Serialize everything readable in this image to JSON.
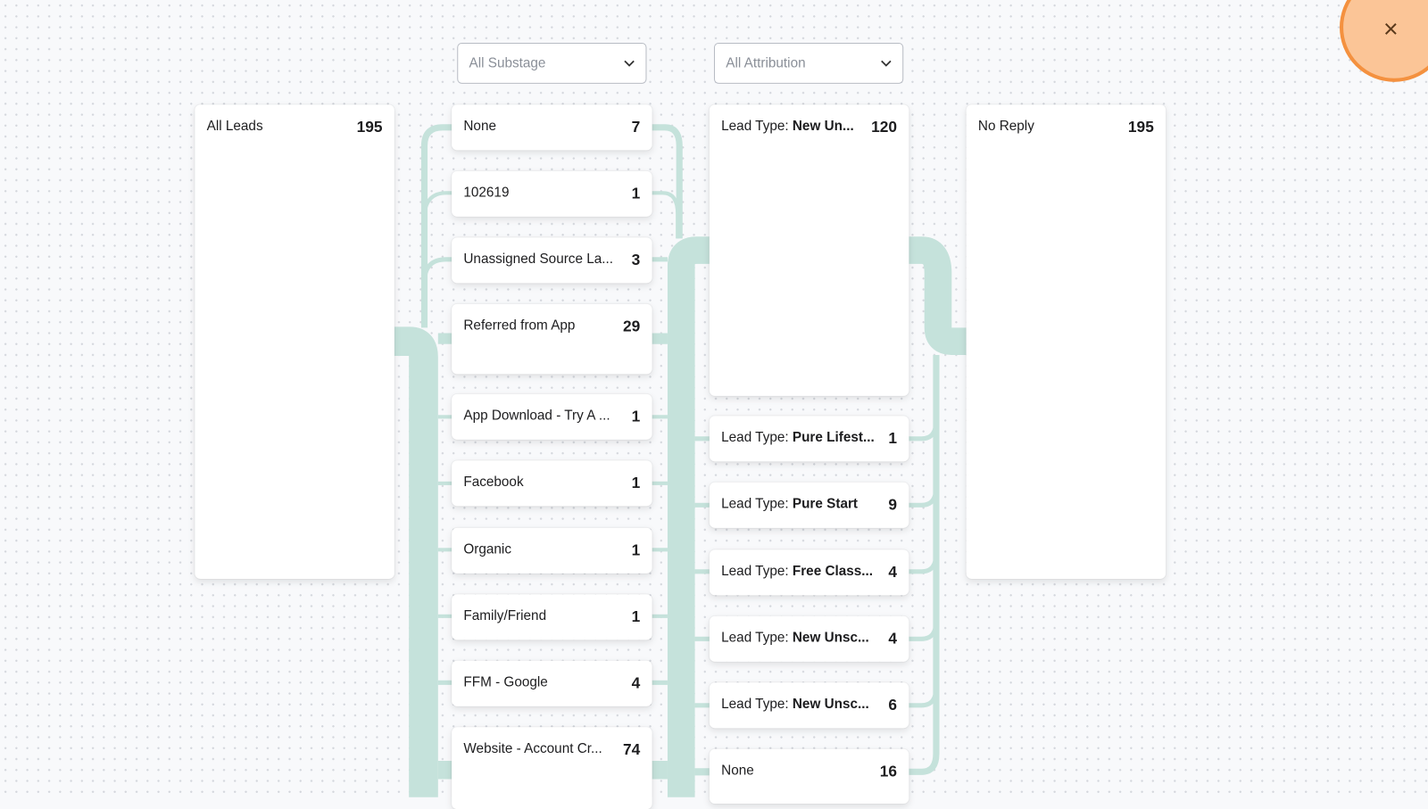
{
  "filters": {
    "substage": "All Substage",
    "attribution": "All Attribution"
  },
  "colors": {
    "link": "#c5e2db",
    "close_fill": "#fbc597",
    "close_border": "#f4913f"
  },
  "close_icon": "×",
  "column1": [
    {
      "label": "All Leads",
      "count": "195"
    }
  ],
  "column2": [
    {
      "label": "None",
      "count": "7"
    },
    {
      "label": "102619",
      "count": "1"
    },
    {
      "label": "Unassigned Source La...",
      "count": "3"
    },
    {
      "label": "Referred from App",
      "count": "29"
    },
    {
      "label": "App Download - Try A ...",
      "count": "1"
    },
    {
      "label": "Facebook",
      "count": "1"
    },
    {
      "label": "Organic",
      "count": "1"
    },
    {
      "label": "Family/Friend",
      "count": "1"
    },
    {
      "label": "FFM - Google",
      "count": "4"
    },
    {
      "label": "Website - Account Cr...",
      "count": "74"
    }
  ],
  "column3": [
    {
      "prefix": "Lead Type: ",
      "value": "New Un...",
      "count": "120"
    },
    {
      "prefix": "Lead Type: ",
      "value": "Pure Lifest...",
      "count": "1"
    },
    {
      "prefix": "Lead Type: ",
      "value": "Pure Start",
      "count": "9"
    },
    {
      "prefix": "Lead Type: ",
      "value": "Free Class...",
      "count": "4"
    },
    {
      "prefix": "Lead Type: ",
      "value": "New Unsc...",
      "count": "4"
    },
    {
      "prefix": "Lead Type: ",
      "value": "New Unsc...",
      "count": "6"
    },
    {
      "prefix": "",
      "value": "None",
      "count": "16",
      "plain": true
    }
  ],
  "column4": [
    {
      "label": "No Reply",
      "count": "195"
    }
  ]
}
